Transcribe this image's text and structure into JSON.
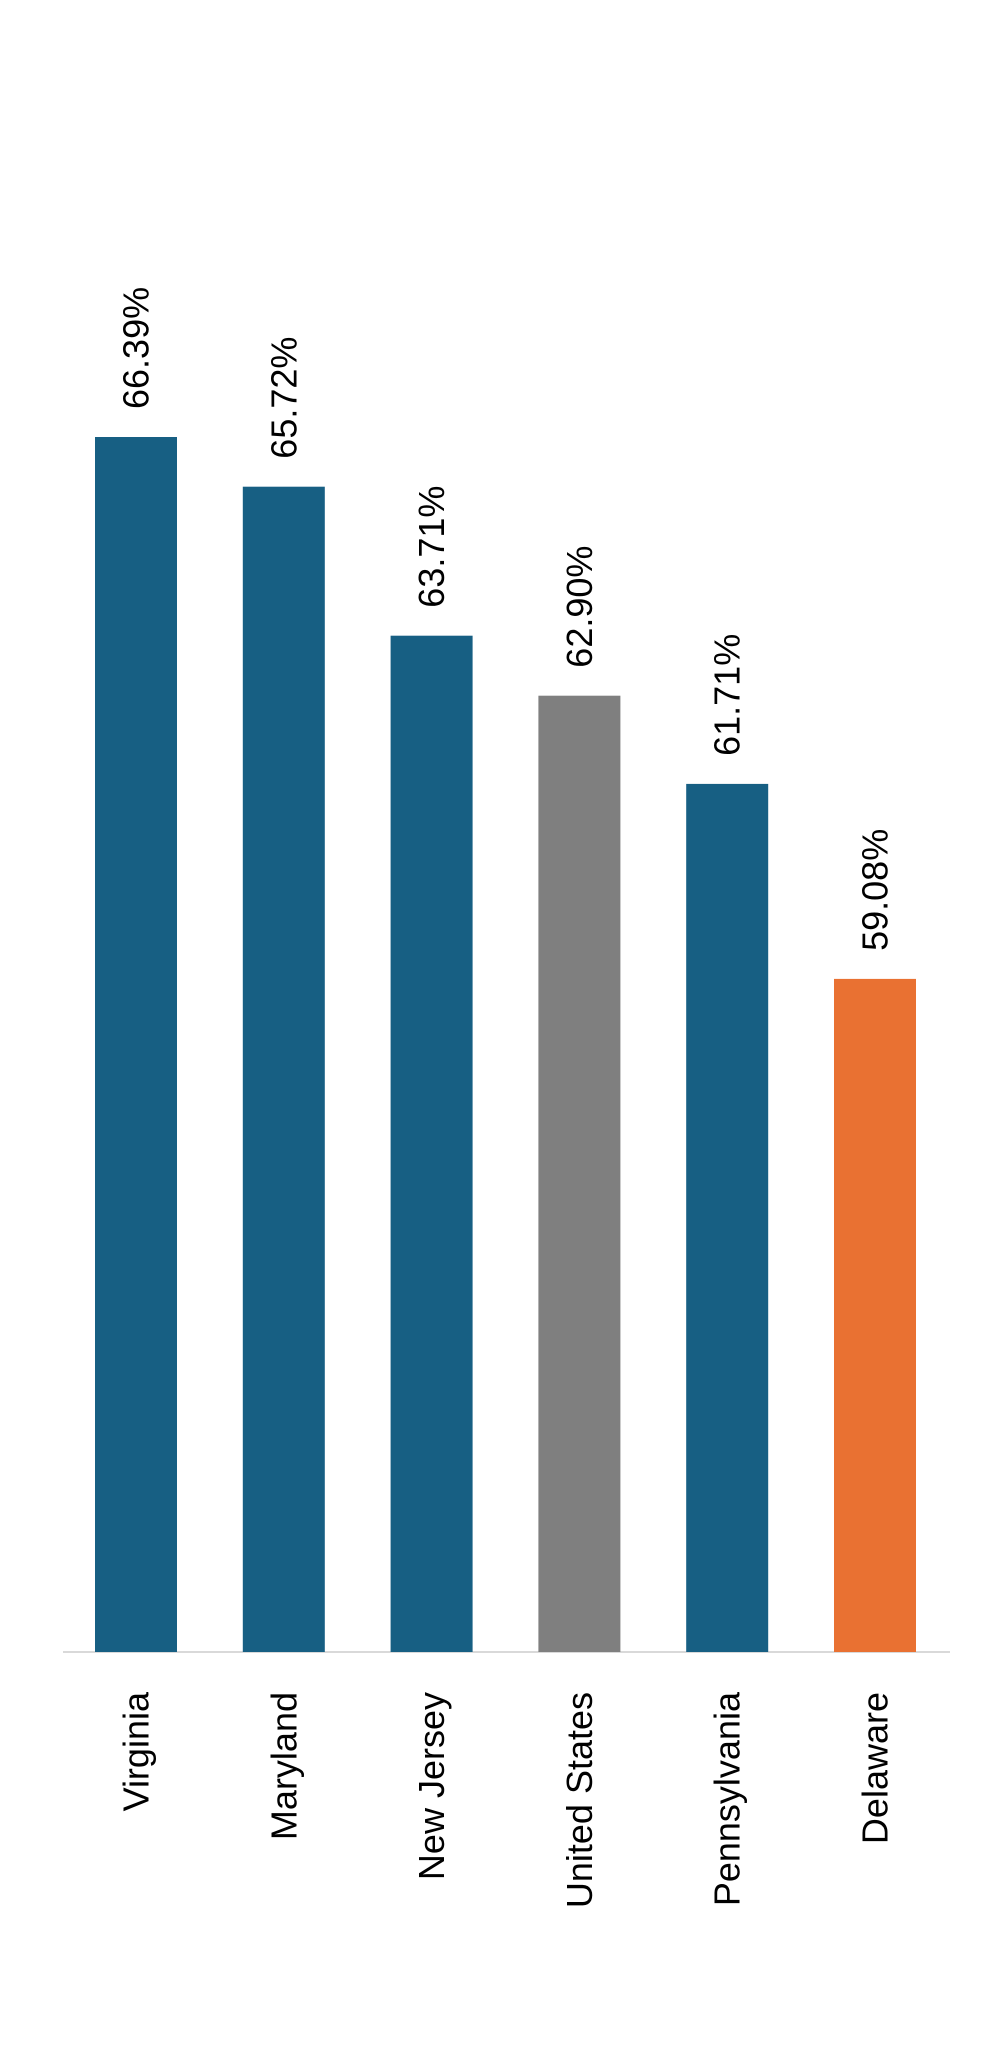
{
  "chart_data": {
    "type": "bar",
    "title": "",
    "xlabel": "",
    "ylabel": "",
    "categories": [
      "Virginia",
      "Maryland",
      "New Jersey",
      "United States",
      "Pennsylvania",
      "Delaware"
    ],
    "values": [
      66.39,
      65.72,
      63.71,
      62.9,
      61.71,
      59.08
    ],
    "value_labels": [
      "66.39%",
      "65.72%",
      "63.71%",
      "62.90%",
      "61.71%",
      "59.08%"
    ],
    "bar_colors": [
      "#175f83",
      "#175f83",
      "#175f83",
      "#7f7f7f",
      "#175f83",
      "#e97132"
    ],
    "ylim": [
      50,
      66.39
    ],
    "grid": false,
    "legend": "none",
    "orientation": "rotated-90-clockwise"
  },
  "colors": {
    "axis_line": "#d9d9d9",
    "highlight_us": "#7f7f7f",
    "highlight_delaware": "#e97132",
    "default_bar": "#175f83"
  }
}
